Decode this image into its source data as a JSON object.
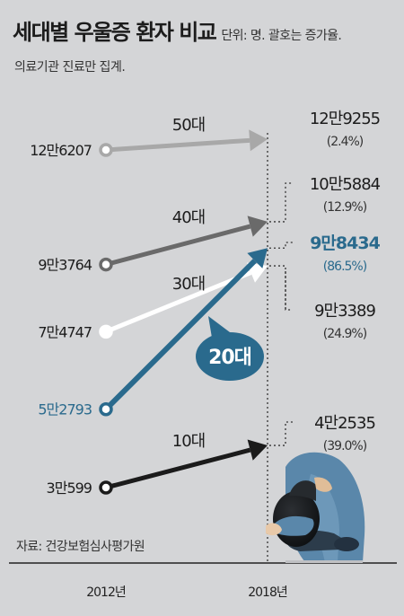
{
  "title": "세대별 우울증 환자 비교",
  "unit_note": "단위: 명. 괄호는 증가율.",
  "subtitle": "의료기관 진료만 집계.",
  "source": "자료: 건강보험심사평가원",
  "colors": {
    "10대": "#1b1b1b",
    "20대": "#2a6a8d",
    "30대": "#ffffff",
    "40대": "#6a6a6a",
    "50대": "#a8a8a8"
  },
  "chart_data": {
    "type": "line",
    "title": "세대별 우울증 환자 비교",
    "x": [
      "2012년",
      "2018년"
    ],
    "series": [
      {
        "name": "50대",
        "values": [
          126207,
          129255
        ],
        "labels": [
          "12만6207",
          "12만9255"
        ],
        "growth": "(2.4%)"
      },
      {
        "name": "40대",
        "values": [
          93764,
          105884
        ],
        "labels": [
          "9만3764",
          "10만5884"
        ],
        "growth": "(12.9%)"
      },
      {
        "name": "30대",
        "values": [
          74747,
          93389
        ],
        "labels": [
          "7만4747",
          "9만3389"
        ],
        "growth": "(24.9%)"
      },
      {
        "name": "20대",
        "values": [
          52793,
          98434
        ],
        "labels": [
          "5만2793",
          "9만8434"
        ],
        "growth": "(86.5%)"
      },
      {
        "name": "10대",
        "values": [
          30599,
          42535
        ],
        "labels": [
          "3만599",
          "4만2535"
        ],
        "growth": "(39.0%)"
      }
    ]
  }
}
